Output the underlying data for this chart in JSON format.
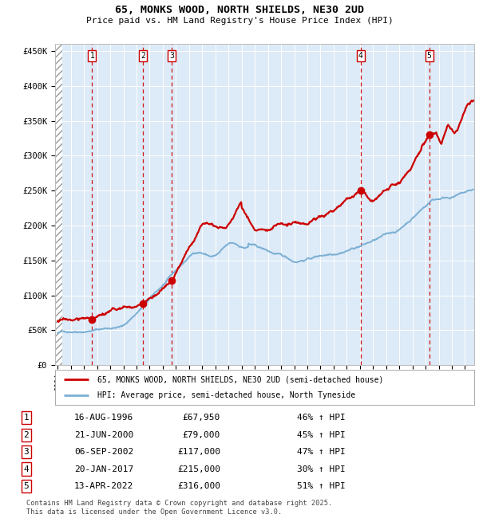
{
  "title": "65, MONKS WOOD, NORTH SHIELDS, NE30 2UD",
  "subtitle": "Price paid vs. HM Land Registry's House Price Index (HPI)",
  "legend_line1": "65, MONKS WOOD, NORTH SHIELDS, NE30 2UD (semi-detached house)",
  "legend_line2": "HPI: Average price, semi-detached house, North Tyneside",
  "footer": "Contains HM Land Registry data © Crown copyright and database right 2025.\nThis data is licensed under the Open Government Licence v3.0.",
  "sales": [
    {
      "num": 1,
      "date": "16-AUG-1996",
      "price": 67950,
      "year": 1996.62
    },
    {
      "num": 2,
      "date": "21-JUN-2000",
      "price": 79000,
      "year": 2000.47
    },
    {
      "num": 3,
      "date": "06-SEP-2002",
      "price": 117000,
      "year": 2002.68
    },
    {
      "num": 4,
      "date": "20-JAN-2017",
      "price": 215000,
      "year": 2017.05
    },
    {
      "num": 5,
      "date": "13-APR-2022",
      "price": 316000,
      "year": 2022.28
    }
  ],
  "table_rows": [
    [
      "1",
      "16-AUG-1996",
      "£67,950",
      "46% ↑ HPI"
    ],
    [
      "2",
      "21-JUN-2000",
      "£79,000",
      "45% ↑ HPI"
    ],
    [
      "3",
      "06-SEP-2002",
      "£117,000",
      "47% ↑ HPI"
    ],
    [
      "4",
      "20-JAN-2017",
      "£215,000",
      "30% ↑ HPI"
    ],
    [
      "5",
      "13-APR-2022",
      "£316,000",
      "51% ↑ HPI"
    ]
  ],
  "property_color": "#cc0000",
  "hpi_color": "#7bafd4",
  "vline_color": "#cc0000",
  "plot_bg": "#ddeaf7",
  "ylim": [
    0,
    460000
  ],
  "xlim_start": 1993.8,
  "xlim_end": 2025.7,
  "yticks": [
    0,
    50000,
    100000,
    150000,
    200000,
    250000,
    300000,
    350000,
    400000,
    450000
  ],
  "ytick_labels": [
    "£0",
    "£50K",
    "£100K",
    "£150K",
    "£200K",
    "£250K",
    "£300K",
    "£350K",
    "£400K",
    "£450K"
  ],
  "xtick_years": [
    1994,
    1995,
    1996,
    1997,
    1998,
    1999,
    2000,
    2001,
    2002,
    2003,
    2004,
    2005,
    2006,
    2007,
    2008,
    2009,
    2010,
    2011,
    2012,
    2013,
    2014,
    2015,
    2016,
    2017,
    2018,
    2019,
    2020,
    2021,
    2022,
    2023,
    2024,
    2025
  ]
}
